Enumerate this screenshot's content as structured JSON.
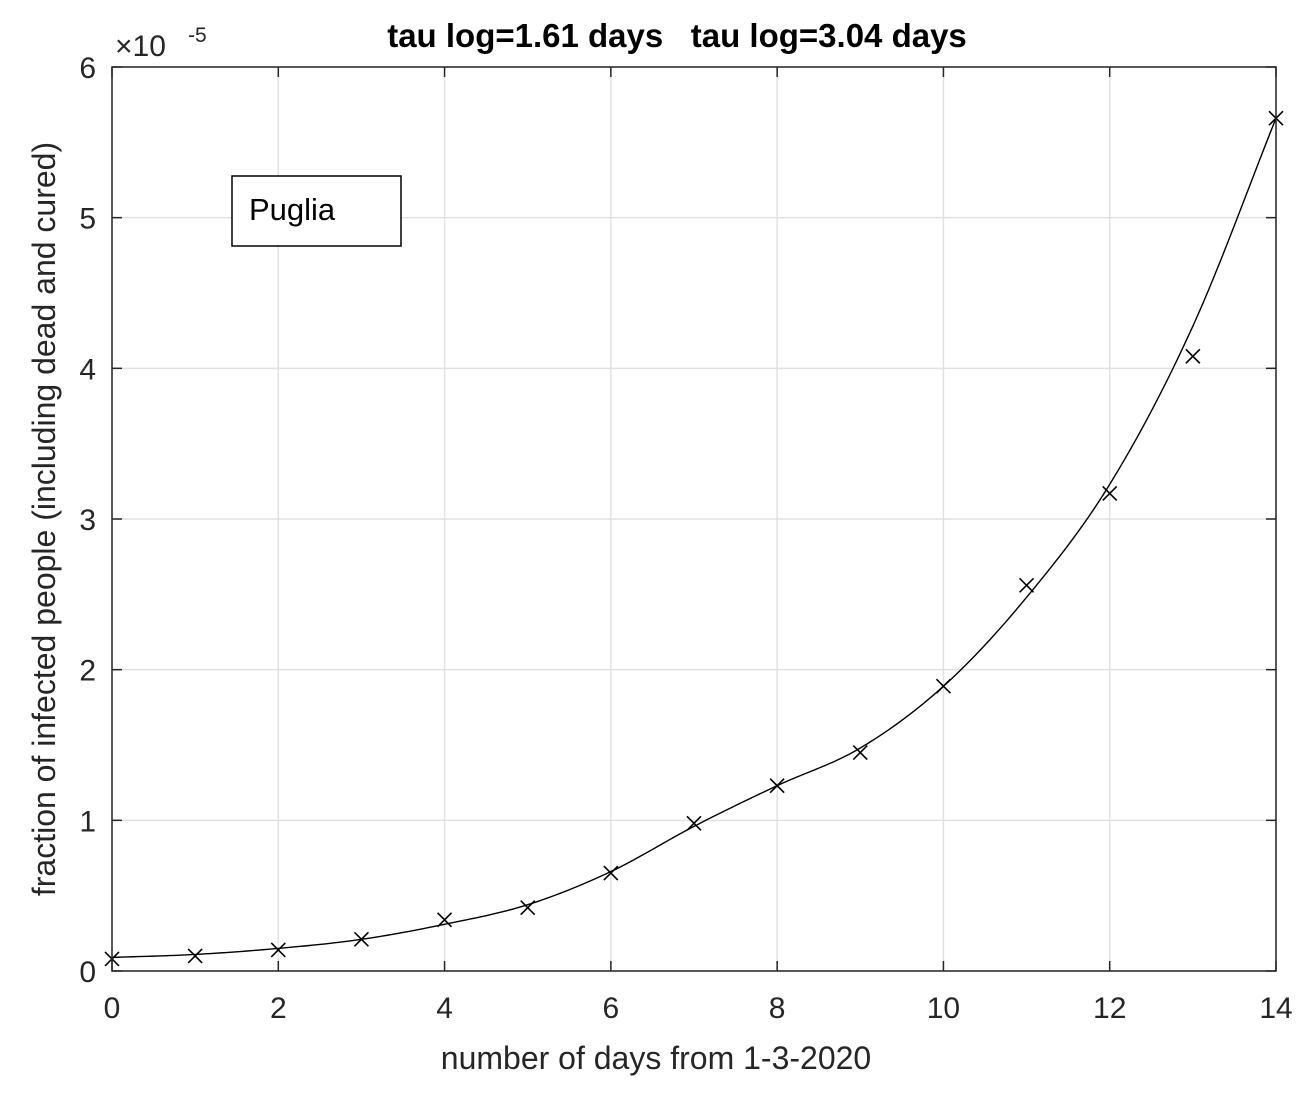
{
  "chart_data": {
    "type": "line",
    "title": "tau log=1.61 days   tau log=3.04 days",
    "xlabel": "number of days from 1-3-2020",
    "ylabel": "fraction of infected people (including dead and cured)",
    "xlim": [
      0,
      14
    ],
    "ylim": [
      0,
      6
    ],
    "y_scale_exponent": "×10⁻⁵",
    "y_exponent_base": "×10",
    "y_exponent_power": "-5",
    "xticks": [
      "0",
      "2",
      "4",
      "6",
      "8",
      "10",
      "12",
      "14"
    ],
    "yticks": [
      "0",
      "1",
      "2",
      "3",
      "4",
      "5",
      "6"
    ],
    "grid": true,
    "legend": {
      "label": "Puglia",
      "placement": "top-left"
    },
    "series": [
      {
        "name": "Puglia",
        "marker": "x",
        "x": [
          0,
          1,
          2,
          3,
          4,
          5,
          6,
          7,
          8,
          9,
          10,
          11,
          12,
          13,
          14
        ],
        "y": [
          0.08,
          0.1,
          0.14,
          0.21,
          0.34,
          0.42,
          0.65,
          0.98,
          1.23,
          1.45,
          1.89,
          2.56,
          3.17,
          4.08,
          5.66
        ]
      },
      {
        "marker": "none",
        "x": [
          0,
          1,
          2,
          3,
          4,
          5,
          6,
          7,
          8,
          9,
          10,
          11,
          12,
          13,
          14
        ],
        "y": [
          0.09,
          0.11,
          0.15,
          0.21,
          0.31,
          0.44,
          0.66,
          0.96,
          1.23,
          1.48,
          1.89,
          2.48,
          3.23,
          4.28,
          5.66
        ]
      }
    ]
  }
}
